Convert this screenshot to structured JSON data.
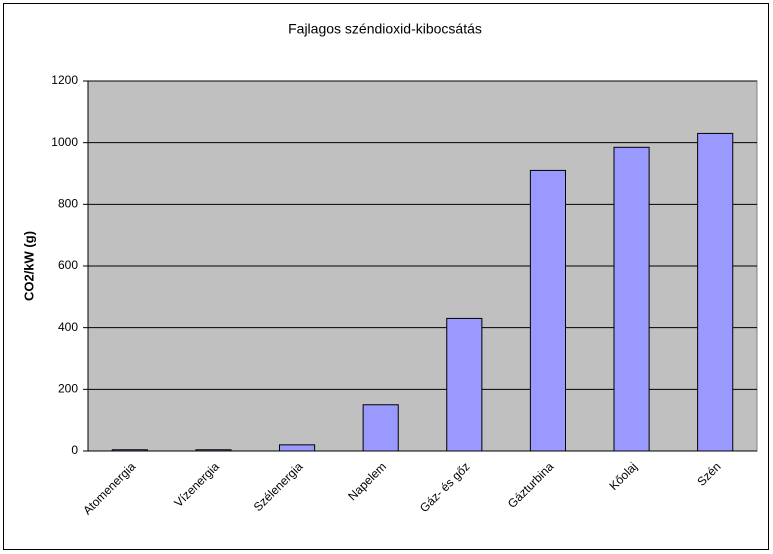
{
  "chart_data": {
    "type": "bar",
    "title": "Fajlagos széndioxid-kibocsátás",
    "y_label": "CO2/kW (g)",
    "categories": [
      "Atomenergia",
      "Vízenergia",
      "Szélenergia",
      "Napelem",
      "Gáz- és gőz",
      "Gázturbina",
      "Kőolaj",
      "Szén"
    ],
    "values": [
      4,
      4,
      20,
      150,
      430,
      910,
      985,
      1030
    ],
    "color": "#9999ff",
    "ylim": [
      0,
      1200
    ],
    "yticks": [
      0,
      200,
      400,
      600,
      800,
      1000,
      1200
    ],
    "grid": true
  }
}
